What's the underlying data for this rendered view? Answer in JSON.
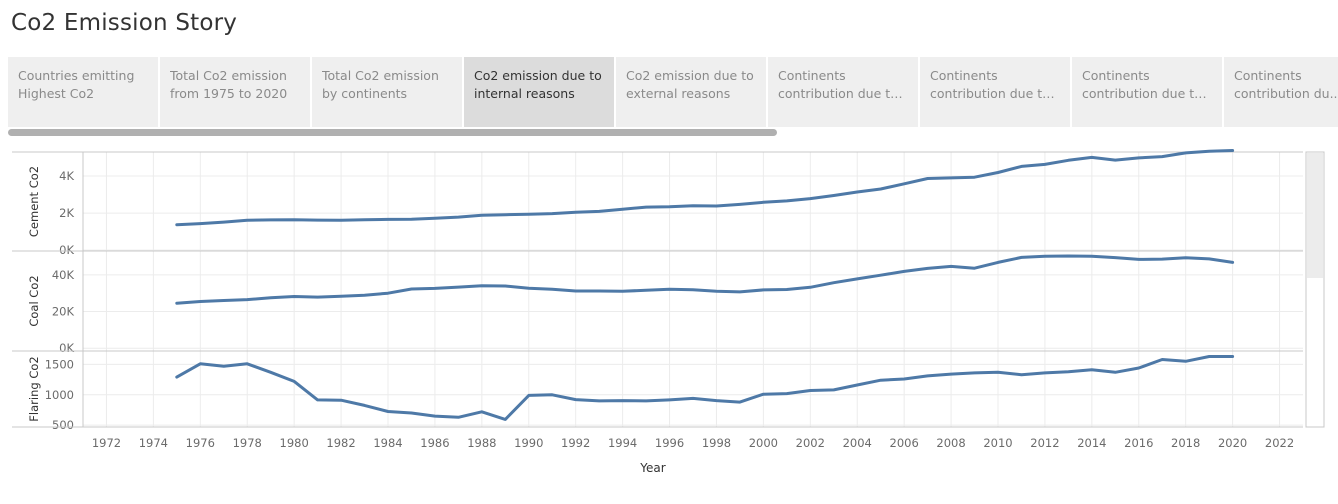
{
  "story": {
    "title": "Co2 Emission Story"
  },
  "tabs": [
    {
      "label": "Countries emitting Highest Co2",
      "active": false
    },
    {
      "label": "Total Co2 emission from 1975 to 2020",
      "active": false
    },
    {
      "label": "Total Co2 emission by continents",
      "active": false
    },
    {
      "label": "Co2 emission due to internal reasons",
      "active": true
    },
    {
      "label": "Co2 emission due to external reasons",
      "active": false
    },
    {
      "label": "Continents contribution due to C...",
      "active": false
    },
    {
      "label": "Continents contribution due to c...",
      "active": false
    },
    {
      "label": "Continents contribution due to g...",
      "active": false
    },
    {
      "label": "Continents contribution du...",
      "active": false
    }
  ],
  "colors": {
    "line": "#4e79a7",
    "grid": "#ececec",
    "axis_text": "#6b6b6b",
    "active_tab": "#dcdcdc",
    "inactive_tab": "#efefef"
  },
  "chart_data": {
    "type": "line",
    "xlabel": "Year",
    "xlim": [
      1971,
      2023
    ],
    "x_ticks": [
      1972,
      1974,
      1976,
      1978,
      1980,
      1982,
      1984,
      1986,
      1988,
      1990,
      1992,
      1994,
      1996,
      1998,
      2000,
      2002,
      2004,
      2006,
      2008,
      2010,
      2012,
      2014,
      2016,
      2018,
      2020,
      2022
    ],
    "x_tick_labels": [
      "1972",
      "1974",
      "1976",
      "1978",
      "1980",
      "1982",
      "1984",
      "1986",
      "1988",
      "1990",
      "1992",
      "1994",
      "1996",
      "1998",
      "2000",
      "2002",
      "2004",
      "2006",
      "2008",
      "2010",
      "2012",
      "2014",
      "2016",
      "2018",
      "2020",
      "2022"
    ],
    "x": [
      1975,
      1976,
      1977,
      1978,
      1979,
      1980,
      1981,
      1982,
      1983,
      1984,
      1985,
      1986,
      1987,
      1988,
      1989,
      1990,
      1991,
      1992,
      1993,
      1994,
      1995,
      1996,
      1997,
      1998,
      1999,
      2000,
      2001,
      2002,
      2003,
      2004,
      2005,
      2006,
      2007,
      2008,
      2009,
      2010,
      2011,
      2012,
      2013,
      2014,
      2015,
      2016,
      2017,
      2018,
      2019,
      2020
    ],
    "grid": true,
    "panels": [
      {
        "ylabel": "Cement Co2",
        "ylim": [
          -50,
          5300
        ],
        "y_ticks": [
          0,
          2000,
          4000
        ],
        "y_tick_labels": [
          "0K",
          "2K",
          "4K"
        ],
        "values": [
          1370,
          1430,
          1510,
          1610,
          1630,
          1640,
          1620,
          1610,
          1640,
          1660,
          1665,
          1720,
          1780,
          1880,
          1910,
          1940,
          1970,
          2040,
          2090,
          2210,
          2320,
          2340,
          2400,
          2380,
          2470,
          2580,
          2660,
          2780,
          2950,
          3140,
          3300,
          3580,
          3870,
          3900,
          3940,
          4190,
          4520,
          4630,
          4850,
          5010,
          4860,
          4980,
          5050,
          5250,
          5340,
          5380
        ]
      },
      {
        "ylabel": "Coal Co2",
        "ylim": [
          -1500,
          53000
        ],
        "y_ticks": [
          0,
          20000,
          40000
        ],
        "y_tick_labels": [
          "0K",
          "20K",
          "40K"
        ],
        "values": [
          24500,
          25500,
          26000,
          26500,
          27500,
          28200,
          27900,
          28300,
          28900,
          30000,
          32300,
          32600,
          33300,
          34100,
          33900,
          32700,
          32100,
          31200,
          31200,
          31100,
          31600,
          32200,
          31900,
          31100,
          30700,
          31800,
          32000,
          33200,
          35700,
          37800,
          39800,
          41900,
          43500,
          44600,
          43600,
          46800,
          49500,
          50100,
          50300,
          50100,
          49400,
          48400,
          48600,
          49300,
          48700,
          46800
        ]
      },
      {
        "ylabel": "Flaring Co2",
        "ylim": [
          470,
          1720
        ],
        "y_ticks": [
          500,
          1000,
          1500
        ],
        "y_tick_labels": [
          "500",
          "1000",
          "1500"
        ],
        "values": [
          1290,
          1510,
          1470,
          1510,
          1370,
          1220,
          915,
          910,
          825,
          725,
          700,
          650,
          630,
          720,
          595,
          990,
          1000,
          920,
          900,
          905,
          900,
          915,
          940,
          905,
          880,
          1010,
          1020,
          1070,
          1080,
          1160,
          1240,
          1260,
          1310,
          1340,
          1360,
          1370,
          1330,
          1360,
          1380,
          1410,
          1370,
          1440,
          1580,
          1550,
          1630,
          1630
        ]
      }
    ]
  }
}
